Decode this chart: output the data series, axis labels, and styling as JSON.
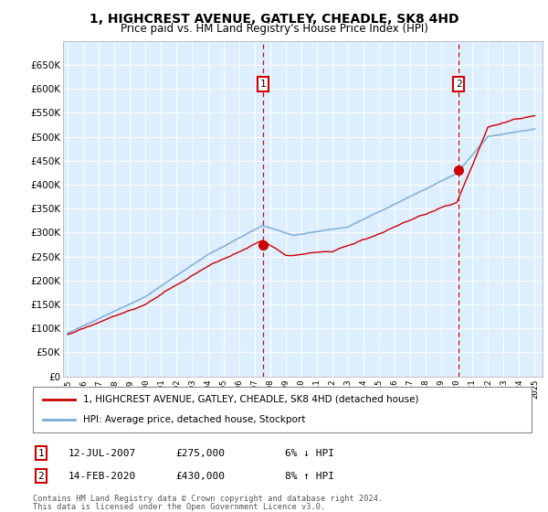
{
  "title": "1, HIGHCREST AVENUE, GATLEY, CHEADLE, SK8 4HD",
  "subtitle": "Price paid vs. HM Land Registry's House Price Index (HPI)",
  "legend_line1": "1, HIGHCREST AVENUE, GATLEY, CHEADLE, SK8 4HD (detached house)",
  "legend_line2": "HPI: Average price, detached house, Stockport",
  "annotation1_label": "1",
  "annotation1_date": "12-JUL-2007",
  "annotation1_price": "£275,000",
  "annotation1_hpi": "6% ↓ HPI",
  "annotation2_label": "2",
  "annotation2_date": "14-FEB-2020",
  "annotation2_price": "£430,000",
  "annotation2_hpi": "8% ↑ HPI",
  "footnote1": "Contains HM Land Registry data © Crown copyright and database right 2024.",
  "footnote2": "This data is licensed under the Open Government Licence v3.0.",
  "price_color": "#cc0000",
  "hpi_color": "#7aadd4",
  "annotation_color": "#cc0000",
  "background_color": "#ddeeff",
  "grid_color": "#ffffff",
  "ylim_min": 0,
  "ylim_max": 700000,
  "transaction1_year": 2007.53,
  "transaction1_value": 275000,
  "transaction2_year": 2020.12,
  "transaction2_value": 430000
}
